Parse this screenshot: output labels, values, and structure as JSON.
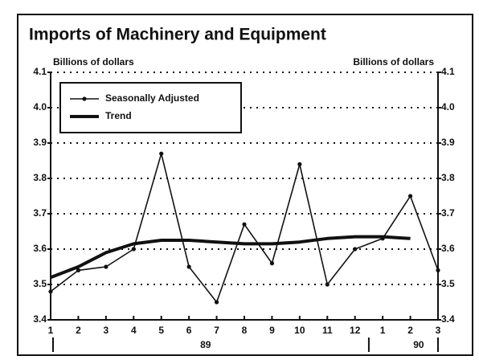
{
  "chart_data": {
    "type": "line",
    "title": "Imports of Machinery and Equipment",
    "y_label": "Billions of dollars",
    "y2_label": "Billions of dollars",
    "categories": [
      "1",
      "2",
      "3",
      "4",
      "5",
      "6",
      "7",
      "8",
      "9",
      "10",
      "11",
      "12",
      "1",
      "2",
      "3"
    ],
    "year_labels": [
      "89",
      "90"
    ],
    "series": [
      {
        "name": "Seasonally Adjusted",
        "color": "#111111",
        "marker": true,
        "values": [
          3.48,
          3.54,
          3.55,
          3.6,
          3.87,
          3.55,
          3.45,
          3.67,
          3.56,
          3.84,
          3.5,
          3.6,
          3.63,
          3.75,
          3.54
        ]
      },
      {
        "name": "Trend",
        "color": "#111111",
        "marker": false,
        "values": [
          3.52,
          3.55,
          3.59,
          3.615,
          3.625,
          3.625,
          3.62,
          3.615,
          3.615,
          3.62,
          3.63,
          3.635,
          3.635,
          3.63,
          null
        ]
      }
    ],
    "ylim": [
      3.4,
      4.1
    ],
    "yticks": [
      3.4,
      3.5,
      3.6,
      3.7,
      3.8,
      3.9,
      {
        "value": 4,
        "label": "4.0"
      },
      4.1
    ],
    "grid": true,
    "legend": "upper left"
  }
}
